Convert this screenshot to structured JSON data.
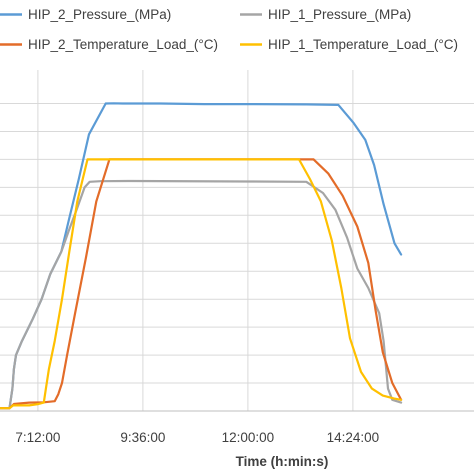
{
  "chart_data": {
    "type": "line",
    "title": "",
    "xlabel": "Time (h:min:s)",
    "ylabel": "",
    "x_unit": "minutes since midnight",
    "xlim": [
      380,
      1030
    ],
    "ylim": [
      0,
      12.2
    ],
    "x_ticks": [
      {
        "label": "7:12:00",
        "value": 432
      },
      {
        "label": "9:36:00",
        "value": 576
      },
      {
        "label": "12:00:00",
        "value": 720
      },
      {
        "label": "14:24:00",
        "value": 864
      }
    ],
    "y_grid": [
      1,
      2,
      3,
      4,
      5,
      6,
      7,
      8,
      9,
      10,
      11
    ],
    "grid": true,
    "legend_position": "top",
    "series": [
      {
        "name": "HIP_2_Pressure_(MPa)",
        "color": "#5B9BD5",
        "points": [
          [
            380,
            0.1
          ],
          [
            393,
            0.1
          ],
          [
            397,
            0.8
          ],
          [
            399,
            1.5
          ],
          [
            402,
            2.0
          ],
          [
            410,
            2.5
          ],
          [
            425,
            3.3
          ],
          [
            437,
            4.0
          ],
          [
            449,
            4.9
          ],
          [
            464,
            5.7
          ],
          [
            475,
            6.9
          ],
          [
            488,
            8.3
          ],
          [
            502,
            9.9
          ],
          [
            525,
            11.0
          ],
          [
            536,
            11.01
          ],
          [
            548,
            11.0
          ],
          [
            600,
            11.0
          ],
          [
            660,
            10.98
          ],
          [
            720,
            10.98
          ],
          [
            800,
            10.97
          ],
          [
            844,
            10.95
          ],
          [
            865,
            10.3
          ],
          [
            881,
            9.7
          ],
          [
            893,
            8.8
          ],
          [
            906,
            7.4
          ],
          [
            921,
            6.0
          ],
          [
            930,
            5.6
          ]
        ]
      },
      {
        "name": "HIP_1_Pressure_(MPa)",
        "color": "#A5A5A5",
        "points": [
          [
            380,
            0.1
          ],
          [
            393,
            0.1
          ],
          [
            397,
            0.8
          ],
          [
            399,
            1.5
          ],
          [
            402,
            2.0
          ],
          [
            410,
            2.5
          ],
          [
            425,
            3.3
          ],
          [
            437,
            4.0
          ],
          [
            449,
            4.9
          ],
          [
            464,
            5.7
          ],
          [
            475,
            6.5
          ],
          [
            485,
            7.2
          ],
          [
            496,
            8.0
          ],
          [
            503,
            8.2
          ],
          [
            518,
            8.22
          ],
          [
            560,
            8.23
          ],
          [
            720,
            8.21
          ],
          [
            800,
            8.2
          ],
          [
            823,
            7.8
          ],
          [
            840,
            7.2
          ],
          [
            856,
            6.2
          ],
          [
            870,
            5.1
          ],
          [
            885,
            4.4
          ],
          [
            900,
            3.5
          ],
          [
            906,
            2.5
          ],
          [
            912,
            0.8
          ],
          [
            918,
            0.4
          ],
          [
            930,
            0.3
          ]
        ]
      },
      {
        "name": "HIP_2_Temperature_Load_(°C)",
        "color": "#E36C29",
        "points": [
          [
            380,
            0.1
          ],
          [
            393,
            0.1
          ],
          [
            399,
            0.25
          ],
          [
            420,
            0.3
          ],
          [
            440,
            0.31
          ],
          [
            455,
            0.35
          ],
          [
            460,
            0.6
          ],
          [
            465,
            1.0
          ],
          [
            472,
            2.0
          ],
          [
            483,
            3.5
          ],
          [
            498,
            5.5
          ],
          [
            512,
            7.5
          ],
          [
            530,
            9.0
          ],
          [
            560,
            9.0
          ],
          [
            720,
            9.0
          ],
          [
            810,
            9.0
          ],
          [
            830,
            8.5
          ],
          [
            850,
            7.7
          ],
          [
            870,
            6.6
          ],
          [
            885,
            5.3
          ],
          [
            895,
            3.6
          ],
          [
            905,
            2.1
          ],
          [
            918,
            1.0
          ],
          [
            930,
            0.4
          ]
        ]
      },
      {
        "name": "HIP_1_Temperature_Load_(°C)",
        "color": "#FFC000",
        "points": [
          [
            380,
            0.1
          ],
          [
            393,
            0.1
          ],
          [
            398,
            0.2
          ],
          [
            420,
            0.2
          ],
          [
            433,
            0.25
          ],
          [
            440,
            0.3
          ],
          [
            443,
            0.8
          ],
          [
            447,
            1.5
          ],
          [
            455,
            2.5
          ],
          [
            465,
            4.0
          ],
          [
            475,
            5.7
          ],
          [
            486,
            7.5
          ],
          [
            500,
            9.0
          ],
          [
            530,
            9.0
          ],
          [
            720,
            9.0
          ],
          [
            790,
            9.0
          ],
          [
            805,
            8.3
          ],
          [
            820,
            7.5
          ],
          [
            835,
            6.1
          ],
          [
            848,
            4.4
          ],
          [
            860,
            2.6
          ],
          [
            875,
            1.4
          ],
          [
            890,
            0.8
          ],
          [
            905,
            0.55
          ],
          [
            920,
            0.45
          ],
          [
            930,
            0.4
          ]
        ]
      }
    ]
  }
}
